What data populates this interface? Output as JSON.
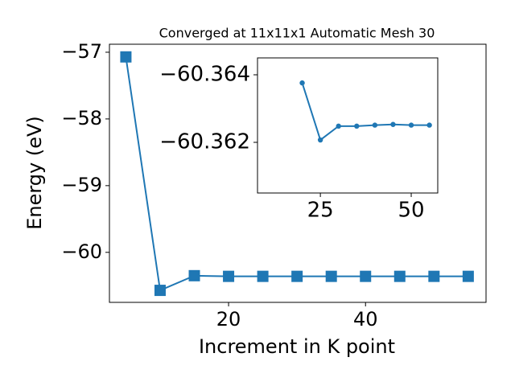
{
  "chart_data": [
    {
      "type": "line",
      "title": "Converged at 11x11x1 Automatic Mesh 30",
      "xlabel": "Increment in K point",
      "ylabel": "Energy (eV)",
      "x": [
        5,
        10,
        15,
        20,
        25,
        30,
        35,
        40,
        45,
        50,
        55
      ],
      "series": [
        {
          "name": "Energy",
          "color": "#1f77b4",
          "marker": "square",
          "values": [
            -57.07,
            -60.57,
            -60.35,
            -60.36,
            -60.36,
            -60.36,
            -60.36,
            -60.36,
            -60.36,
            -60.36,
            -60.36
          ]
        }
      ],
      "xlim": [
        2.6,
        57.6
      ],
      "xticks": [
        20,
        40
      ],
      "ylim": [
        -60.75,
        -56.88
      ],
      "yticks": [
        {
          "value": -60,
          "label": "−60"
        },
        {
          "value": -59,
          "label": "−59"
        },
        {
          "value": -58,
          "label": "−58"
        },
        {
          "value": -57,
          "label": "−57"
        }
      ]
    },
    {
      "type": "line",
      "x": [
        20,
        25,
        30,
        35,
        40,
        45,
        50,
        55
      ],
      "series": [
        {
          "name": "Energy",
          "color": "#1f77b4",
          "marker": "circle",
          "values": [
            -60.36376,
            -60.36207,
            -60.36248,
            -60.36248,
            -60.36251,
            -60.36253,
            -60.36251,
            -60.36251
          ]
        }
      ],
      "xlim": [
        7.7,
        57.3
      ],
      "xticks": [
        25,
        50
      ],
      "ylim": [
        -60.3605,
        -60.3645
      ],
      "yticks": [
        {
          "value": -60.362,
          "label": "−60.362"
        },
        {
          "value": -60.364,
          "label": "−60.364"
        }
      ]
    }
  ]
}
